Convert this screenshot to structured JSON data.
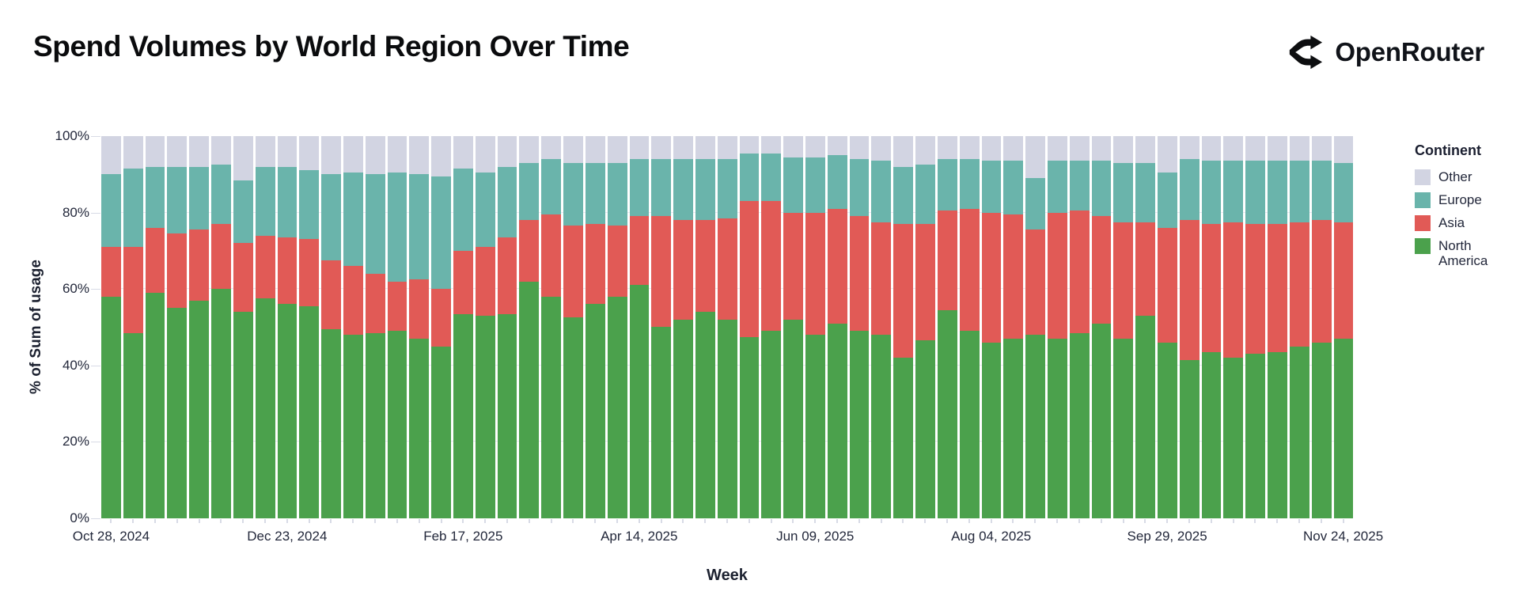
{
  "header": {
    "title": "Spend Volumes by World Region Over Time",
    "brand": "OpenRouter"
  },
  "chart_data": {
    "type": "bar",
    "stacked": true,
    "stack_unit": "percent_of_total",
    "title": "Spend Volumes by World Region Over Time",
    "xlabel": "Week",
    "ylabel": "% of Sum of usage",
    "ylim": [
      0,
      100
    ],
    "y_ticks": [
      "0%",
      "20%",
      "40%",
      "60%",
      "80%",
      "100%"
    ],
    "grid": "faint horizontal gridlines at 20% steps",
    "legend_title": "Continent",
    "legend_position": "right",
    "x_tick_indices": [
      0,
      8,
      16,
      24,
      32,
      40,
      48,
      56
    ],
    "x_tick_labels": [
      "Oct 28, 2024",
      "Dec 23, 2024",
      "Feb 17, 2025",
      "Apr 14, 2025",
      "Jun 09, 2025",
      "Aug 04, 2025",
      "Sep 29, 2025",
      "Nov 24, 2025"
    ],
    "categories": [
      "Oct 28, 2024",
      "Nov 04, 2024",
      "Nov 11, 2024",
      "Nov 18, 2024",
      "Nov 25, 2024",
      "Dec 02, 2024",
      "Dec 09, 2024",
      "Dec 16, 2024",
      "Dec 23, 2024",
      "Dec 30, 2024",
      "Jan 06, 2025",
      "Jan 13, 2025",
      "Jan 20, 2025",
      "Jan 27, 2025",
      "Feb 03, 2025",
      "Feb 10, 2025",
      "Feb 17, 2025",
      "Feb 24, 2025",
      "Mar 03, 2025",
      "Mar 10, 2025",
      "Mar 17, 2025",
      "Mar 24, 2025",
      "Mar 31, 2025",
      "Apr 07, 2025",
      "Apr 14, 2025",
      "Apr 21, 2025",
      "Apr 28, 2025",
      "May 05, 2025",
      "May 12, 2025",
      "May 19, 2025",
      "May 26, 2025",
      "Jun 02, 2025",
      "Jun 09, 2025",
      "Jun 16, 2025",
      "Jun 23, 2025",
      "Jun 30, 2025",
      "Jul 07, 2025",
      "Jul 14, 2025",
      "Jul 21, 2025",
      "Jul 28, 2025",
      "Aug 04, 2025",
      "Aug 11, 2025",
      "Aug 18, 2025",
      "Aug 25, 2025",
      "Sep 01, 2025",
      "Sep 08, 2025",
      "Sep 15, 2025",
      "Sep 22, 2025",
      "Sep 29, 2025",
      "Oct 06, 2025",
      "Oct 13, 2025",
      "Oct 20, 2025",
      "Oct 27, 2025",
      "Nov 03, 2025",
      "Nov 10, 2025",
      "Nov 17, 2025",
      "Nov 24, 2025"
    ],
    "series": [
      {
        "name": "North America",
        "color": "#4ba14c",
        "values": [
          58,
          48.5,
          59,
          55,
          57,
          60,
          54,
          57.5,
          56,
          55.5,
          49.5,
          48,
          48.5,
          49,
          47,
          45,
          53.5,
          53,
          53.5,
          62,
          58,
          52.5,
          56,
          58,
          61,
          50,
          52,
          54,
          52,
          47.5,
          49,
          52,
          48,
          51,
          49,
          48,
          42,
          46.5,
          54.5,
          49,
          46,
          47,
          48,
          47,
          48.5,
          51,
          47,
          53,
          46,
          41.5,
          43.5,
          42,
          43,
          43.5,
          45,
          46,
          47
        ]
      },
      {
        "name": "Asia",
        "color": "#e15a56",
        "values": [
          13,
          22.5,
          17,
          19.5,
          18.5,
          17,
          18,
          16.5,
          17.5,
          17.5,
          18,
          18,
          15.5,
          13,
          15.5,
          15,
          16.5,
          18,
          20,
          16,
          21.5,
          24,
          21,
          18.5,
          18,
          29,
          26,
          24,
          26.5,
          35.5,
          34,
          28,
          32,
          30,
          30,
          29.5,
          35,
          30.5,
          26,
          32,
          34,
          32.5,
          27.5,
          33,
          32,
          28,
          30.5,
          24.5,
          30,
          36.5,
          33.5,
          35.5,
          34,
          33.5,
          32.5,
          32,
          30.5
        ]
      },
      {
        "name": "Europe",
        "color": "#6ab4ab",
        "values": [
          19,
          20.5,
          16,
          17.5,
          16.5,
          15.5,
          16.5,
          18,
          18.5,
          18,
          22.5,
          24.5,
          26,
          28.5,
          27.5,
          29.5,
          21.5,
          19.5,
          18.5,
          15,
          14.5,
          16.5,
          16,
          16.5,
          15,
          15,
          16,
          16,
          15.5,
          12.5,
          12.5,
          14.5,
          14.5,
          14,
          15,
          16,
          15,
          15.5,
          13.5,
          13,
          13.5,
          14,
          13.5,
          13.5,
          13,
          14.5,
          15.5,
          15.5,
          14.5,
          16,
          16.5,
          16,
          16.5,
          16.5,
          16,
          15.5,
          15.5
        ]
      },
      {
        "name": "Other",
        "color": "#d2d4e2",
        "values": [
          10,
          8.5,
          8,
          8,
          8,
          7.5,
          11.5,
          8,
          8,
          9,
          10,
          9.5,
          10,
          9.5,
          10,
          10.5,
          8.5,
          9.5,
          8,
          7,
          6,
          7,
          7,
          7,
          6,
          6,
          6,
          6,
          6,
          4.5,
          4.5,
          5.5,
          5.5,
          5,
          6,
          6.5,
          8,
          7.5,
          6,
          6,
          6.5,
          6.5,
          11,
          6.5,
          6.5,
          6.5,
          7,
          7,
          9.5,
          6,
          6.5,
          6.5,
          6.5,
          6.5,
          6.5,
          6.5,
          7
        ]
      }
    ]
  },
  "legend": {
    "title": "Continent",
    "items": [
      {
        "label": "Other",
        "color": "#d2d4e2"
      },
      {
        "label": "Europe",
        "color": "#6ab4ab"
      },
      {
        "label": "Asia",
        "color": "#e15a56"
      },
      {
        "label": "North America",
        "color": "#4ba14c"
      }
    ]
  }
}
